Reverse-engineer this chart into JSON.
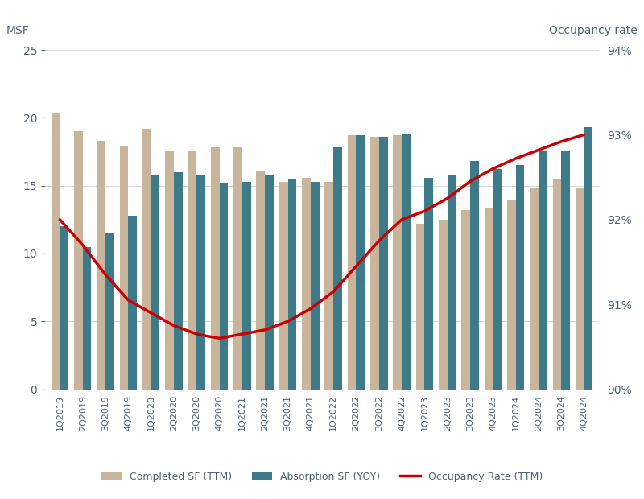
{
  "quarters": [
    "1Q2019",
    "2Q2019",
    "3Q2019",
    "4Q2019",
    "1Q2020",
    "2Q2020",
    "3Q2020",
    "4Q2020",
    "1Q2021",
    "2Q2021",
    "3Q2021",
    "4Q2021",
    "1Q2022",
    "2Q2022",
    "3Q2022",
    "4Q2022",
    "1Q2023",
    "2Q2023",
    "3Q2023",
    "4Q2023",
    "1Q2024",
    "2Q2024",
    "3Q2024",
    "4Q2024"
  ],
  "completed_sf": [
    20.4,
    19.0,
    18.3,
    17.9,
    19.2,
    17.5,
    17.5,
    17.8,
    17.8,
    16.1,
    15.3,
    15.6,
    15.3,
    18.7,
    18.6,
    18.7,
    12.2,
    12.5,
    13.2,
    13.4,
    14.0,
    14.8,
    15.5,
    14.8
  ],
  "absorption_sf": [
    12.0,
    10.5,
    11.5,
    12.8,
    15.8,
    16.0,
    15.8,
    15.2,
    15.3,
    15.8,
    15.5,
    15.3,
    17.8,
    18.7,
    18.6,
    18.8,
    15.6,
    15.8,
    16.8,
    16.2,
    16.5,
    17.5,
    17.5,
    19.3
  ],
  "occupancy_rate": [
    92.0,
    91.7,
    91.35,
    91.05,
    90.9,
    90.75,
    90.65,
    90.6,
    90.65,
    90.7,
    90.8,
    90.95,
    91.15,
    91.45,
    91.75,
    92.0,
    92.1,
    92.25,
    92.45,
    92.6,
    92.72,
    92.82,
    92.92,
    93.0
  ],
  "completed_color": "#c8b59c",
  "absorption_color": "#3d7a8a",
  "line_color": "#cc0000",
  "ylabel_left": "MSF",
  "ylabel_right": "Occupancy rate",
  "ylim_left": [
    0,
    25
  ],
  "ylim_right": [
    90,
    94
  ],
  "yticks_left": [
    0,
    5,
    10,
    15,
    20,
    25
  ],
  "ytick_left_labels": [
    "0",
    "5",
    "10",
    "15",
    "20",
    "25"
  ],
  "yticks_right": [
    90,
    91,
    92,
    93,
    94
  ],
  "ytick_right_labels": [
    "90%",
    "91%",
    "92%",
    "93%",
    "94%"
  ],
  "legend_labels": [
    "Completed SF (TTM)",
    "Absorption SF (YOY)",
    "Occupancy Rate (TTM)"
  ],
  "background_color": "#ffffff",
  "text_color": "#4a6274",
  "grid_color": "#d0d0d0"
}
